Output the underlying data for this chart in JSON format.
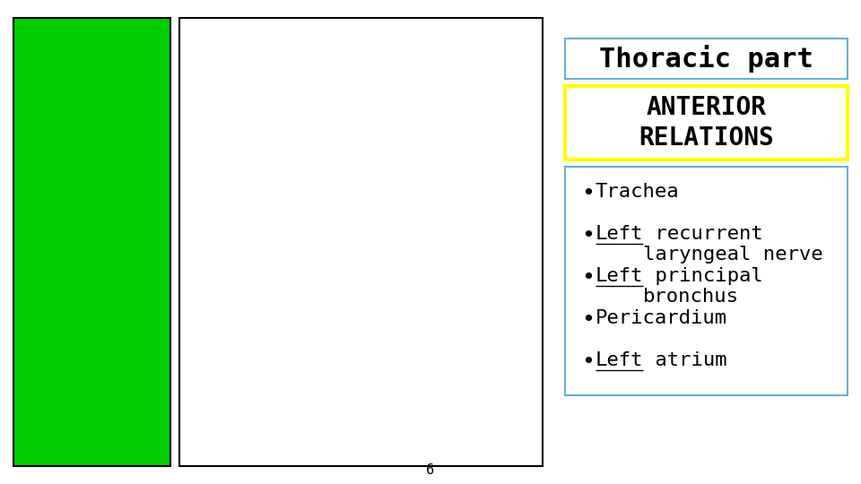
{
  "title": "Thoracic part",
  "subtitle": "ANTERIOR\nRELATIONS",
  "bullet_items": [
    {
      "text": "Trachea",
      "underline_word": null
    },
    {
      "text": " recurrent\nlaryngeal nerve",
      "underline_word": "Left"
    },
    {
      "text": " principal\nbronchus",
      "underline_word": "Left"
    },
    {
      "text": "Pericardium",
      "underline_word": null
    },
    {
      "text": " atrium",
      "underline_word": "Left"
    }
  ],
  "bg_color": "#ffffff",
  "title_box_border": "#6baed6",
  "subtitle_box_border": "#ffff00",
  "bullets_box_border": "#6baed6",
  "page_number": "6",
  "title_fontsize": 22,
  "subtitle_fontsize": 20,
  "bullet_fontsize": 16
}
